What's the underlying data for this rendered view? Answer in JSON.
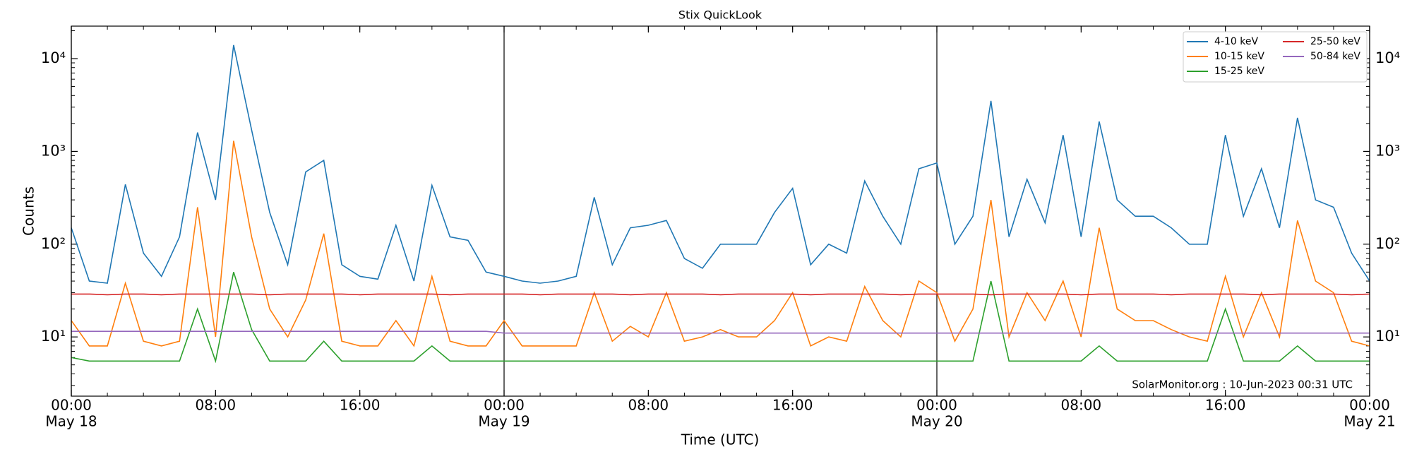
{
  "chart_data": {
    "type": "line",
    "title": "Stix QuickLook",
    "xlabel": "Time (UTC)",
    "ylabel": "Counts",
    "annotation": "SolarMonitor.org : 10-Jun-2023 00:31 UTC",
    "x": [
      0,
      1,
      2,
      3,
      4,
      5,
      6,
      7,
      8,
      9,
      10,
      11,
      12,
      13,
      14,
      15,
      16,
      17,
      18,
      19,
      20,
      21,
      22,
      23,
      24,
      25,
      26,
      27,
      28,
      29,
      30,
      31,
      32,
      33,
      34,
      35,
      36,
      37,
      38,
      39,
      40,
      41,
      42,
      43,
      44,
      45,
      46,
      47,
      48,
      49,
      50,
      51,
      52,
      53,
      54,
      55,
      56,
      57,
      58,
      59,
      60,
      61,
      62,
      63,
      64,
      65,
      66,
      67,
      68,
      69,
      70,
      71,
      72
    ],
    "xlim": [
      0,
      72
    ],
    "xticks": [
      {
        "value": 0,
        "label": "00:00"
      },
      {
        "value": 8,
        "label": "08:00"
      },
      {
        "value": 16,
        "label": "16:00"
      },
      {
        "value": 24,
        "label": "00:00"
      },
      {
        "value": 32,
        "label": "08:00"
      },
      {
        "value": 40,
        "label": "16:00"
      },
      {
        "value": 48,
        "label": "00:00"
      },
      {
        "value": 56,
        "label": "08:00"
      },
      {
        "value": 64,
        "label": "16:00"
      },
      {
        "value": 72,
        "label": "00:00"
      }
    ],
    "xtick_dates": [
      {
        "value": 0,
        "label": "May 18"
      },
      {
        "value": 24,
        "label": "May 19"
      },
      {
        "value": 48,
        "label": "May 20"
      },
      {
        "value": 72,
        "label": "May 21"
      }
    ],
    "day_lines": true,
    "ylim": [
      2.3,
      22400
    ],
    "log_y": true,
    "right_axis_labels": true,
    "yticks": [
      {
        "value": 10,
        "label": "10¹"
      },
      {
        "value": 100,
        "label": "10²"
      },
      {
        "value": 1000,
        "label": "10³"
      },
      {
        "value": 10000,
        "label": "10⁴"
      }
    ],
    "legend": "upper right",
    "series": [
      {
        "name": "4-10 keV",
        "color": "#1f77b4",
        "values": [
          150,
          40,
          38,
          440,
          80,
          45,
          120,
          1600,
          300,
          14000,
          1700,
          220,
          60,
          600,
          800,
          60,
          45,
          42,
          160,
          40,
          430,
          120,
          110,
          50,
          45,
          40,
          38,
          40,
          45,
          320,
          60,
          150,
          160,
          180,
          70,
          55,
          100,
          100,
          100,
          220,
          400,
          60,
          100,
          80,
          480,
          200,
          100,
          650,
          750,
          100,
          200,
          3500,
          120,
          500,
          170,
          1500,
          120,
          2100,
          300,
          200,
          200,
          150,
          100,
          100,
          1500,
          200,
          650,
          150,
          2300,
          300,
          250,
          80,
          40
        ]
      },
      {
        "name": "10-15 keV",
        "color": "#ff7f0e",
        "values": [
          15,
          8,
          8,
          38,
          9,
          8,
          9,
          250,
          10,
          1300,
          120,
          20,
          10,
          25,
          130,
          9,
          8,
          8,
          15,
          8,
          45,
          9,
          8,
          8,
          15,
          8,
          8,
          8,
          8,
          30,
          9,
          13,
          10,
          30,
          9,
          10,
          12,
          10,
          10,
          15,
          30,
          8,
          10,
          9,
          35,
          15,
          10,
          40,
          30,
          9,
          20,
          300,
          10,
          30,
          15,
          40,
          10,
          150,
          20,
          15,
          15,
          12,
          10,
          9,
          45,
          10,
          30,
          10,
          180,
          40,
          30,
          9,
          8
        ]
      },
      {
        "name": "15-25 keV",
        "color": "#2ca02c",
        "values": [
          6,
          5.5,
          5.5,
          5.5,
          5.5,
          5.5,
          5.5,
          20,
          5.5,
          50,
          12,
          5.5,
          5.5,
          5.5,
          9,
          5.5,
          5.5,
          5.5,
          5.5,
          5.5,
          8,
          5.5,
          5.5,
          5.5,
          5.5,
          5.5,
          5.5,
          5.5,
          5.5,
          5.5,
          5.5,
          5.5,
          5.5,
          5.5,
          5.5,
          5.5,
          5.5,
          5.5,
          5.5,
          5.5,
          5.5,
          5.5,
          5.5,
          5.5,
          5.5,
          5.5,
          5.5,
          5.5,
          5.5,
          5.5,
          5.5,
          40,
          5.5,
          5.5,
          5.5,
          5.5,
          5.5,
          8,
          5.5,
          5.5,
          5.5,
          5.5,
          5.5,
          5.5,
          20,
          5.5,
          5.5,
          5.5,
          8,
          5.5,
          5.5,
          5.5,
          5.5
        ]
      },
      {
        "name": "25-50 keV",
        "color": "#d62728",
        "values": [
          29,
          29,
          28.5,
          29,
          29,
          28.5,
          29,
          29,
          29,
          29,
          29,
          28.5,
          29,
          29,
          29,
          29,
          28.5,
          29,
          29,
          29,
          29,
          28.5,
          29,
          29,
          29,
          29,
          28.5,
          29,
          29,
          29,
          29,
          28.5,
          29,
          29,
          29,
          29,
          28.5,
          29,
          29,
          29,
          29,
          28.5,
          29,
          29,
          29,
          29,
          28.5,
          29,
          29,
          29,
          29,
          28.5,
          29,
          29,
          29,
          29,
          28.5,
          29,
          29,
          29,
          29,
          28.5,
          29,
          29,
          29,
          29,
          28.5,
          29,
          29,
          29,
          29,
          28.5,
          29
        ]
      },
      {
        "name": "50-84 keV",
        "color": "#9467bd",
        "values": [
          11.5,
          11.5,
          11.5,
          11.5,
          11.5,
          11.5,
          11.5,
          11.5,
          11.5,
          11.5,
          11.5,
          11.5,
          11.5,
          11.5,
          11.5,
          11.5,
          11.5,
          11.5,
          11.5,
          11.5,
          11.5,
          11.5,
          11.5,
          11.5,
          11,
          11,
          11,
          11,
          11,
          11,
          11,
          11,
          11,
          11,
          11,
          11,
          11,
          11,
          11,
          11,
          11,
          11,
          11,
          11,
          11,
          11,
          11,
          11,
          11,
          11,
          11,
          11,
          11,
          11,
          11,
          11,
          11,
          11,
          11,
          11,
          11,
          11,
          11,
          11,
          11,
          11,
          11,
          11,
          11,
          11,
          11,
          11,
          11
        ]
      }
    ]
  }
}
